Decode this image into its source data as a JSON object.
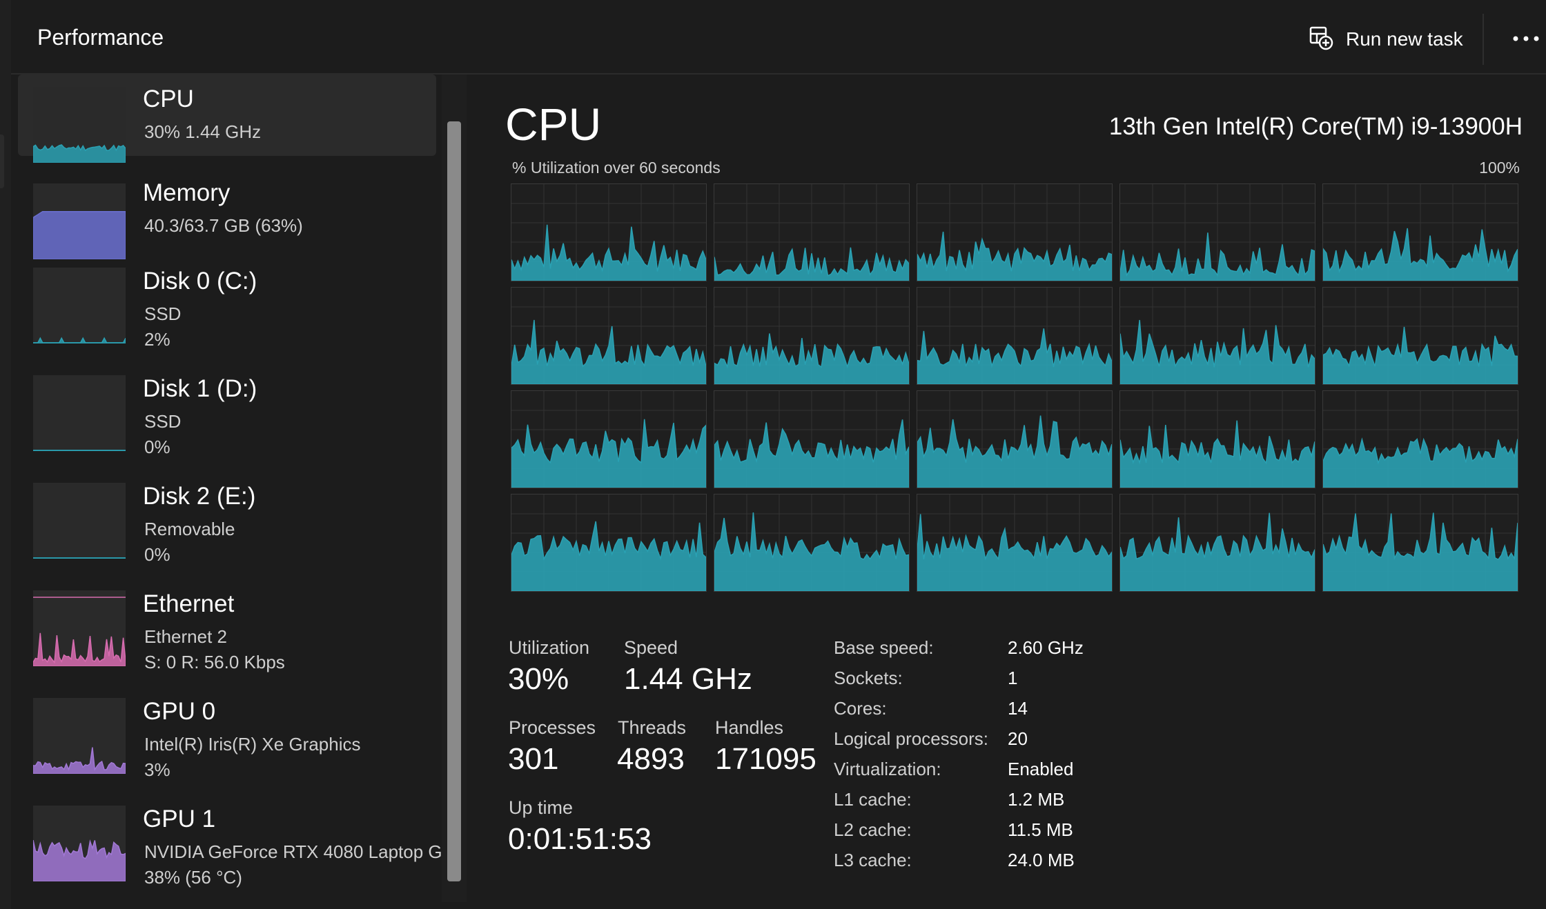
{
  "header": {
    "title": "Performance",
    "run_task_label": "Run new task",
    "run_task_icon": "run-task-icon",
    "more_icon": "more-options-icon"
  },
  "sidebar": {
    "items": [
      {
        "title": "CPU",
        "line1": "30%  1.44 GHz",
        "line2": "",
        "color": "#2aa1b3",
        "kind": "cpu",
        "selected": true
      },
      {
        "title": "Memory",
        "line1": "40.3/63.7 GB (63%)",
        "line2": "",
        "color": "#6a6fd0",
        "kind": "memory",
        "selected": false
      },
      {
        "title": "Disk 0 (C:)",
        "line1": "SSD",
        "line2": "2%",
        "color": "#2aa1b3",
        "kind": "disk",
        "selected": false
      },
      {
        "title": "Disk 1 (D:)",
        "line1": "SSD",
        "line2": "0%",
        "color": "#2aa1b3",
        "kind": "disk",
        "selected": false
      },
      {
        "title": "Disk 2 (E:)",
        "line1": "Removable",
        "line2": "0%",
        "color": "#2aa1b3",
        "kind": "disk",
        "selected": false
      },
      {
        "title": "Ethernet",
        "line1": "Ethernet 2",
        "line2": "S: 0  R: 56.0 Kbps",
        "color": "#d86cb0",
        "kind": "ethernet",
        "selected": false
      },
      {
        "title": "GPU 0",
        "line1": "Intel(R) Iris(R) Xe Graphics",
        "line2": "3%",
        "color": "#a278d6",
        "kind": "gpu0",
        "selected": false
      },
      {
        "title": "GPU 1",
        "line1": "NVIDIA GeForce RTX 4080 Laptop G",
        "line2": "38%  (56 °C)",
        "color": "#a278d6",
        "kind": "gpu1",
        "selected": false
      }
    ]
  },
  "main": {
    "title": "CPU",
    "model": "13th Gen Intel(R) Core(TM) i9-13900H",
    "graph_label": "% Utilization over 60 seconds",
    "graph_max": "100%",
    "graph_color": "#2aa1b3",
    "logical_processor_count": 20,
    "stats": {
      "utilization_label": "Utilization",
      "utilization": "30%",
      "speed_label": "Speed",
      "speed": "1.44 GHz",
      "processes_label": "Processes",
      "processes": "301",
      "threads_label": "Threads",
      "threads": "4893",
      "handles_label": "Handles",
      "handles": "171095",
      "uptime_label": "Up time",
      "uptime": "0:01:51:53"
    },
    "specs": [
      {
        "label": "Base speed:",
        "value": "2.60 GHz"
      },
      {
        "label": "Sockets:",
        "value": "1"
      },
      {
        "label": "Cores:",
        "value": "14"
      },
      {
        "label": "Logical processors:",
        "value": "20"
      },
      {
        "label": "Virtualization:",
        "value": "Enabled"
      },
      {
        "label": "L1 cache:",
        "value": "1.2 MB"
      },
      {
        "label": "L2 cache:",
        "value": "11.5 MB"
      },
      {
        "label": "L3 cache:",
        "value": "24.0 MB"
      }
    ]
  }
}
